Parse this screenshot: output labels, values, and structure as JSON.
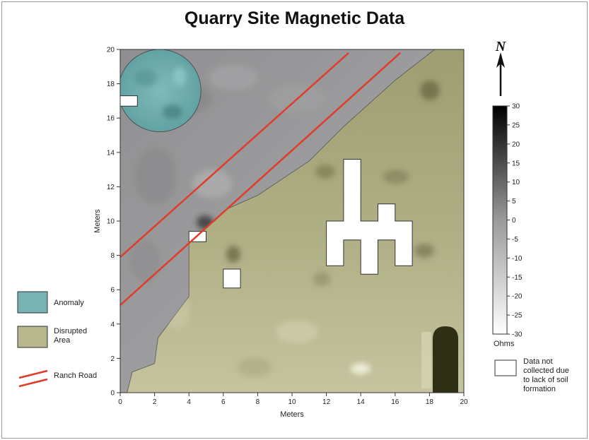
{
  "chart_data": {
    "type": "heatmap",
    "title": "Quarry Site Magnetic Data",
    "xlabel": "Meters",
    "ylabel": "Meters",
    "xlim": [
      0,
      20
    ],
    "ylim": [
      0,
      20
    ],
    "x_ticks": [
      "0",
      "2",
      "4",
      "6",
      "8",
      "10",
      "12",
      "14",
      "16",
      "18",
      "20"
    ],
    "y_ticks": [
      "0",
      "2",
      "4",
      "6",
      "8",
      "10",
      "12",
      "14",
      "16",
      "18",
      "20"
    ],
    "colorbar": {
      "range": [
        -30,
        30
      ],
      "ticks": [
        "30",
        "25",
        "20",
        "15",
        "10",
        "5",
        "0",
        "-5",
        "-10",
        "-15",
        "-20",
        "-25",
        "-30"
      ],
      "unit": "Ohms"
    },
    "north_label": "N",
    "anomaly": {
      "cx": 2.3,
      "cy": 17.6,
      "r": 2.4
    },
    "disrupted_area_boundary": [
      [
        0.4,
        0
      ],
      [
        0.7,
        1.2
      ],
      [
        2,
        1.7
      ],
      [
        2.2,
        3.2
      ],
      [
        4,
        5.6
      ],
      [
        4,
        8.8
      ],
      [
        5.5,
        10
      ],
      [
        6.2,
        10.7
      ],
      [
        8,
        11.5
      ],
      [
        11,
        13.5
      ],
      [
        13,
        15.5
      ],
      [
        16,
        18.2
      ],
      [
        18.3,
        20
      ],
      [
        20,
        20
      ],
      [
        20,
        0
      ]
    ],
    "ranch_road": [
      {
        "from": [
          0,
          7.9
        ],
        "to": [
          13.3,
          19.8
        ]
      },
      {
        "from": [
          0,
          5.1
        ],
        "to": [
          16.3,
          19.8
        ]
      }
    ],
    "no_data_areas": [
      [
        [
          0,
          16.7
        ],
        [
          1,
          16.7
        ],
        [
          1,
          17.3
        ],
        [
          0,
          17.3
        ]
      ],
      [
        [
          4,
          8.8
        ],
        [
          5,
          8.8
        ],
        [
          5,
          9.4
        ],
        [
          4,
          9.4
        ]
      ],
      [
        [
          6,
          6.1
        ],
        [
          7,
          6.1
        ],
        [
          7,
          7.2
        ],
        [
          6,
          7.2
        ]
      ],
      [
        [
          12,
          7.4
        ],
        [
          13,
          7.4
        ],
        [
          13,
          8.9
        ],
        [
          14,
          8.9
        ],
        [
          14,
          6.9
        ],
        [
          15,
          6.9
        ],
        [
          15,
          8.9
        ],
        [
          16,
          8.9
        ],
        [
          16,
          7.4
        ],
        [
          17,
          7.4
        ],
        [
          17,
          10
        ],
        [
          16,
          10
        ],
        [
          16,
          11
        ],
        [
          15,
          11
        ],
        [
          15,
          10
        ],
        [
          14,
          10
        ],
        [
          14,
          13.6
        ],
        [
          13,
          13.6
        ],
        [
          13,
          10
        ],
        [
          12,
          10
        ]
      ]
    ],
    "legend": [
      {
        "label": "Anomaly",
        "color": "#77b3b3"
      },
      {
        "label": "Disrupted Area",
        "label_lines": [
          "Disrupted",
          "Area"
        ],
        "color": "#b7b68c"
      },
      {
        "label": "Ranch Road",
        "color": "#e03b2b"
      },
      {
        "label": "Data not collected due to lack of soil formation",
        "label_lines": [
          "Data not",
          "collected due",
          "to lack of soil",
          "formation"
        ],
        "color": "#ffffff"
      }
    ]
  }
}
